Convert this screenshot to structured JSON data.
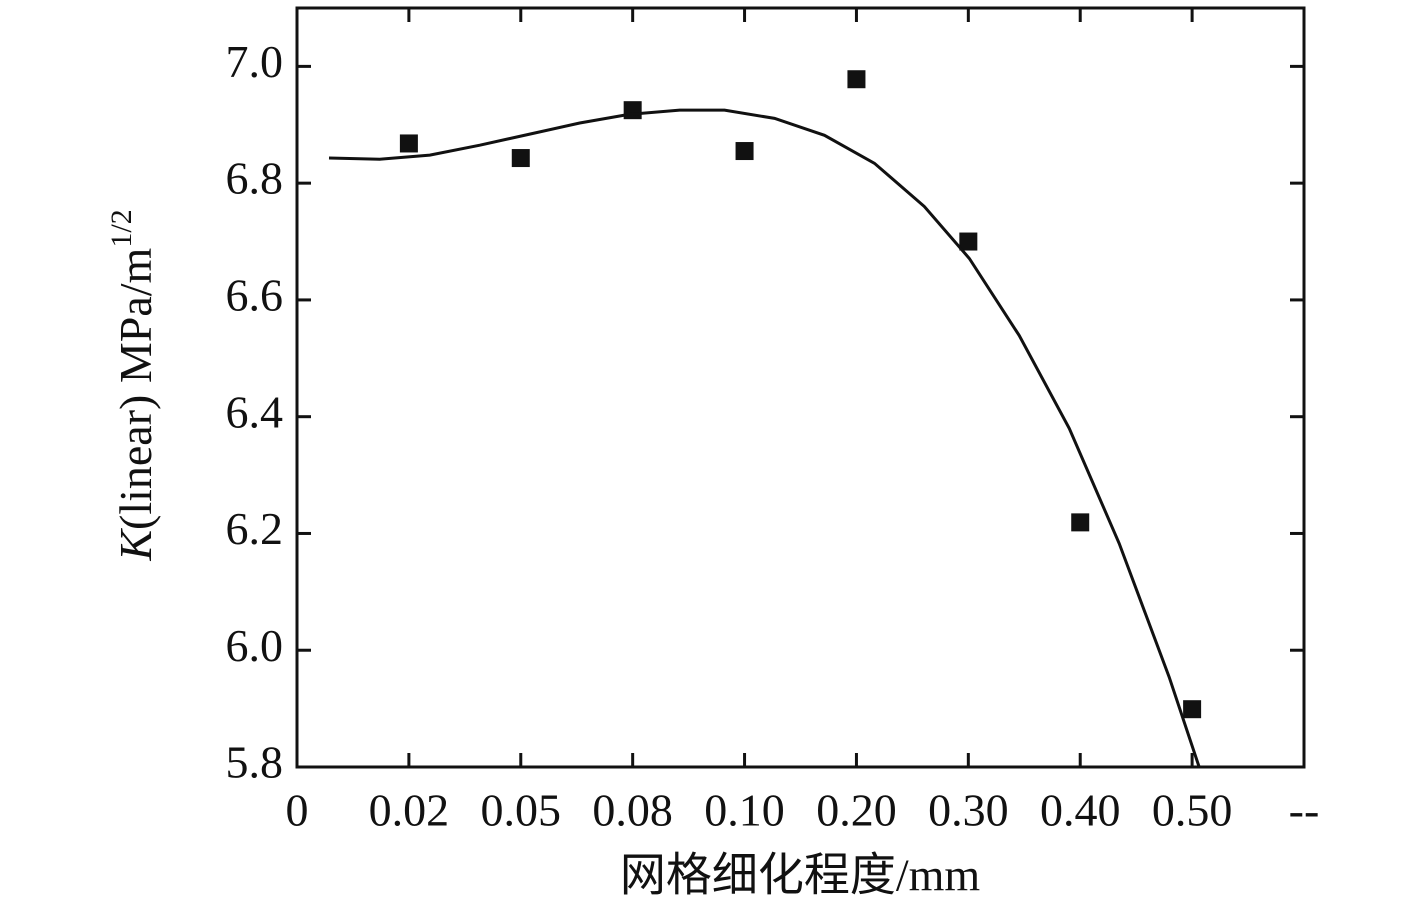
{
  "chart_data": {
    "type": "scatter",
    "xlabel": "网格细化程度/mm",
    "ylabel": {
      "symbol": "K",
      "text": "(linear) MPa/m",
      "superscript": "1/2"
    },
    "xlim": [
      0,
      9
    ],
    "xticks": [
      0,
      {
        "value": 1,
        "label": "0.02"
      },
      {
        "value": 2,
        "label": "0.05"
      },
      {
        "value": 3,
        "label": "0.08"
      },
      {
        "value": 4,
        "label": "0.10"
      },
      {
        "value": 5,
        "label": "0.20"
      },
      {
        "value": 6,
        "label": "0.30"
      },
      {
        "value": 7,
        "label": "0.40"
      },
      {
        "value": 8,
        "label": "0.50"
      },
      {
        "value": 9,
        "label": "--"
      }
    ],
    "ylim": [
      5.8,
      7.1
    ],
    "yticks": [
      {
        "value": 5.8,
        "label": "5.8"
      },
      {
        "value": 6.0,
        "label": "6.0"
      },
      {
        "value": 6.2,
        "label": "6.2"
      },
      {
        "value": 6.4,
        "label": "6.4"
      },
      {
        "value": 6.6,
        "label": "6.6"
      },
      {
        "value": 6.8,
        "label": "6.8"
      },
      {
        "value": 7.0,
        "label": "7.0"
      }
    ],
    "series": [
      {
        "mark": "square",
        "color": "#111111",
        "x": [
          1,
          2,
          3,
          4,
          5,
          6,
          7,
          8
        ],
        "values": [
          6.868,
          6.843,
          6.925,
          6.855,
          6.978,
          6.7,
          6.219,
          5.899
        ]
      },
      {
        "mark": "line",
        "color": "#111111",
        "x": [
          0.286,
          0.741,
          1.187,
          1.634,
          2.08,
          2.527,
          2.973,
          3.42,
          3.821,
          4.268,
          4.714,
          5.161,
          5.607,
          6.009,
          6.455,
          6.902,
          7.348,
          7.795,
          8.063
        ],
        "values": [
          6.843,
          6.841,
          6.848,
          6.865,
          6.884,
          6.903,
          6.918,
          6.925,
          6.925,
          6.911,
          6.882,
          6.834,
          6.76,
          6.671,
          6.539,
          6.38,
          6.183,
          5.954,
          5.8
        ]
      }
    ]
  }
}
